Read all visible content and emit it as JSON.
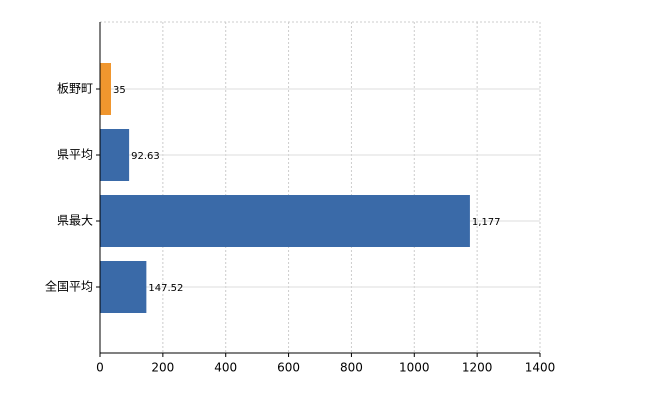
{
  "chart_data": {
    "type": "bar",
    "orientation": "horizontal",
    "categories": [
      "板野町",
      "県平均",
      "県最大",
      "全国平均"
    ],
    "values": [
      35,
      92.63,
      1177,
      147.52
    ],
    "value_labels": [
      "35",
      "92.63",
      "1,177",
      "147.52"
    ],
    "colors": [
      "#f0962e",
      "#3a6aa8",
      "#3a6aa8",
      "#3a6aa8"
    ],
    "xlim": [
      0,
      1400
    ],
    "xticks": [
      0,
      200,
      400,
      600,
      800,
      1000,
      1200,
      1400
    ],
    "grid": true
  }
}
